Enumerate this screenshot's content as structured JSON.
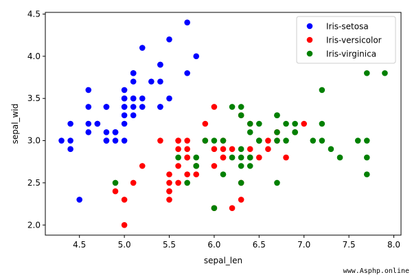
{
  "chart_data": {
    "type": "scatter",
    "xlabel": "sepal_len",
    "ylabel": "sepal_wid",
    "xlim": [
      4.12,
      8.08
    ],
    "ylim": [
      1.88,
      4.52
    ],
    "xticks": [
      4.5,
      5.0,
      5.5,
      6.0,
      6.5,
      7.0,
      7.5,
      8.0
    ],
    "xtick_labels": [
      "4.5",
      "5.0",
      "5.5",
      "6.0",
      "6.5",
      "7.0",
      "7.5",
      "8.0"
    ],
    "yticks": [
      2.0,
      2.5,
      3.0,
      3.5,
      4.0,
      4.5
    ],
    "ytick_labels": [
      "2.0",
      "2.5",
      "3.0",
      "3.5",
      "4.0",
      "4.5"
    ],
    "grid": false,
    "legend_position": "top-right",
    "series": [
      {
        "name": "Iris-setosa",
        "color": "#0000ff",
        "x": [
          5.1,
          4.9,
          4.7,
          4.6,
          5.0,
          5.4,
          4.6,
          5.0,
          4.4,
          4.9,
          5.4,
          4.8,
          4.8,
          4.3,
          5.8,
          5.7,
          5.4,
          5.1,
          5.7,
          5.1,
          5.4,
          5.1,
          4.6,
          5.1,
          4.8,
          5.0,
          5.0,
          5.2,
          5.2,
          4.7,
          4.8,
          5.4,
          5.2,
          5.5,
          4.9,
          5.0,
          5.5,
          4.9,
          4.4,
          5.1,
          5.0,
          4.5,
          4.4,
          5.0,
          5.1,
          4.8,
          5.1,
          4.6,
          5.3,
          5.0
        ],
        "y": [
          3.5,
          3.0,
          3.2,
          3.1,
          3.6,
          3.9,
          3.4,
          3.4,
          2.9,
          3.1,
          3.7,
          3.4,
          3.0,
          3.0,
          4.0,
          4.4,
          3.9,
          3.5,
          3.8,
          3.8,
          3.4,
          3.7,
          3.6,
          3.3,
          3.4,
          3.0,
          3.4,
          3.5,
          3.4,
          3.2,
          3.1,
          3.4,
          4.1,
          4.2,
          3.1,
          3.2,
          3.5,
          3.1,
          3.0,
          3.4,
          3.5,
          2.3,
          3.2,
          3.5,
          3.8,
          3.0,
          3.8,
          3.2,
          3.7,
          3.3
        ]
      },
      {
        "name": "Iris-versicolor",
        "color": "#ff0000",
        "x": [
          7.0,
          6.4,
          6.9,
          5.5,
          6.5,
          5.7,
          6.3,
          4.9,
          6.6,
          5.2,
          5.0,
          5.9,
          6.0,
          6.1,
          5.6,
          6.7,
          5.6,
          5.8,
          6.2,
          5.6,
          5.9,
          6.1,
          6.3,
          6.1,
          6.4,
          6.6,
          6.8,
          6.7,
          6.0,
          5.7,
          5.5,
          5.5,
          5.8,
          6.0,
          5.4,
          6.0,
          6.7,
          6.3,
          5.6,
          5.5,
          5.5,
          6.1,
          5.8,
          5.0,
          5.6,
          5.7,
          5.7,
          6.2,
          5.1,
          5.7
        ],
        "y": [
          3.2,
          3.2,
          3.1,
          2.3,
          2.8,
          2.8,
          3.3,
          2.4,
          2.9,
          2.7,
          2.0,
          3.0,
          2.2,
          2.9,
          2.9,
          3.1,
          3.0,
          2.7,
          2.2,
          2.5,
          3.2,
          2.8,
          2.5,
          2.8,
          2.9,
          3.0,
          2.8,
          3.0,
          2.9,
          2.6,
          2.4,
          2.4,
          2.7,
          2.7,
          3.0,
          3.4,
          3.1,
          2.3,
          3.0,
          2.5,
          2.6,
          3.0,
          2.6,
          2.3,
          2.7,
          3.0,
          2.9,
          2.9,
          2.5,
          2.8
        ]
      },
      {
        "name": "Iris-virginica",
        "color": "#008000",
        "x": [
          6.3,
          5.8,
          7.1,
          6.3,
          6.5,
          7.6,
          4.9,
          7.3,
          6.7,
          7.2,
          6.5,
          6.4,
          6.8,
          5.7,
          5.8,
          6.4,
          6.5,
          7.7,
          7.7,
          6.0,
          6.9,
          5.6,
          7.7,
          6.3,
          6.7,
          7.2,
          6.2,
          6.1,
          6.4,
          7.2,
          7.4,
          7.9,
          6.4,
          6.3,
          6.1,
          7.7,
          6.3,
          6.4,
          6.0,
          6.9,
          6.7,
          6.9,
          5.8,
          6.8,
          6.7,
          6.7,
          6.3,
          6.5,
          6.2,
          5.9
        ],
        "y": [
          3.3,
          2.7,
          3.0,
          2.9,
          3.0,
          3.0,
          2.5,
          2.9,
          2.5,
          3.6,
          3.2,
          2.7,
          3.0,
          2.5,
          2.8,
          3.2,
          3.0,
          3.8,
          2.6,
          2.2,
          3.2,
          2.8,
          2.8,
          2.7,
          3.3,
          3.2,
          2.8,
          3.0,
          2.8,
          3.0,
          2.8,
          3.8,
          2.8,
          2.8,
          2.6,
          3.0,
          3.4,
          3.1,
          3.0,
          3.1,
          3.1,
          3.1,
          2.7,
          3.2,
          3.3,
          3.0,
          2.5,
          3.0,
          3.4,
          3.0
        ]
      }
    ]
  },
  "watermark": "www.Asphp.online"
}
